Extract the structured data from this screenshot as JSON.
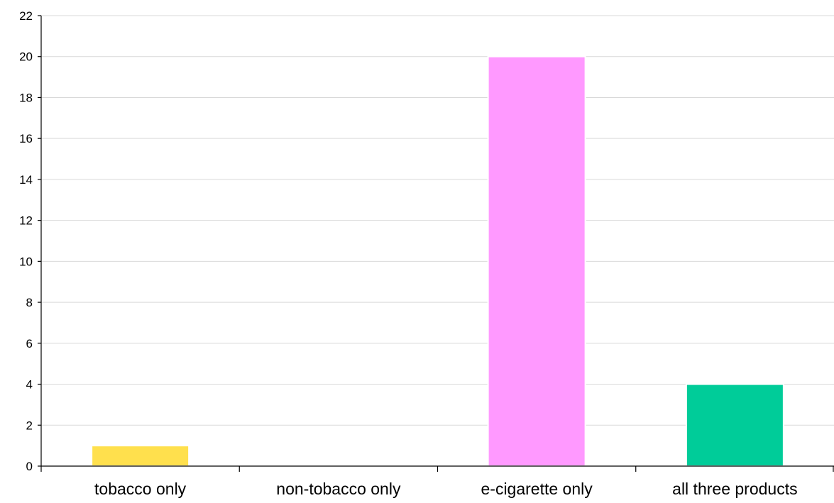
{
  "chart_data": {
    "type": "bar",
    "title": "",
    "xlabel": "",
    "ylabel": "",
    "categories": [
      "tobacco only",
      "non-tobacco only",
      "e-cigarette only",
      "all three products"
    ],
    "values": [
      1,
      0,
      20,
      4
    ],
    "colors": [
      "#FFE04D",
      "#FFFFFF",
      "#FF99FF",
      "#00CC99"
    ],
    "ylim": [
      0,
      22
    ],
    "yticks": [
      0,
      2,
      4,
      6,
      8,
      10,
      12,
      14,
      16,
      18,
      20,
      22
    ],
    "grid": true,
    "legend": "none"
  }
}
